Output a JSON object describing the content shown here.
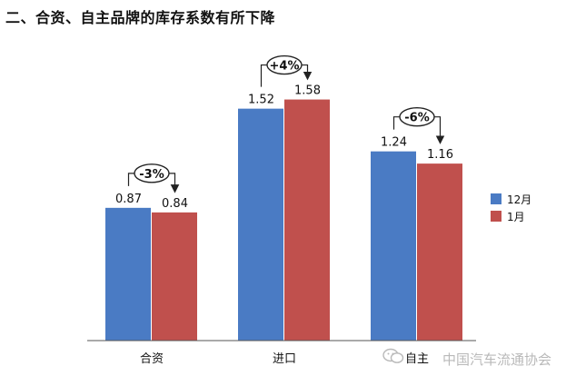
{
  "page": {
    "title": "二、合资、自主品牌的库存系数有所下降",
    "watermark": "中国汽车流通协会"
  },
  "chart_data": {
    "type": "bar",
    "categories": [
      "合资",
      "进口",
      "自主"
    ],
    "series": [
      {
        "name": "12月",
        "values": [
          0.87,
          1.52,
          1.24
        ],
        "color": "#4a7bc4"
      },
      {
        "name": "1月",
        "values": [
          0.84,
          1.58,
          1.16
        ],
        "color": "#c0504d"
      }
    ],
    "data_labels": [
      [
        "0.87",
        "0.84"
      ],
      [
        "1.52",
        "1.58"
      ],
      [
        "1.24",
        "1.16"
      ]
    ],
    "changes": [
      "-3%",
      "+4%",
      "-6%"
    ],
    "ylim": [
      0,
      2
    ],
    "grid": false,
    "legend": "right"
  }
}
